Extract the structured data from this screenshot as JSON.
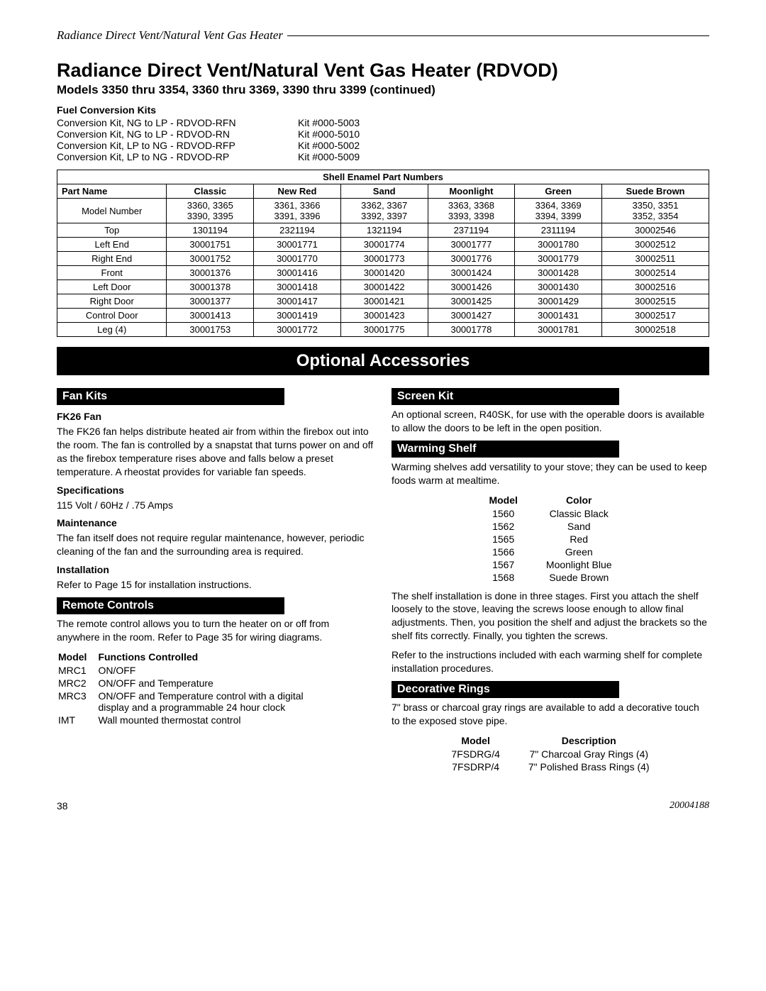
{
  "header": {
    "running_head": "Radiance Direct Vent/Natural Vent Gas Heater",
    "title": "Radiance Direct Vent/Natural Vent Gas Heater (RDVOD)",
    "subtitle": "Models 3350 thru 3354, 3360 thru 3369, 3390 thru 3399 (continued)"
  },
  "fuel_kits": {
    "heading": "Fuel Conversion Kits",
    "rows": [
      {
        "name": "Conversion Kit, NG to LP - RDVOD-RFN",
        "kit": "Kit #000-5003"
      },
      {
        "name": "Conversion Kit, NG to LP - RDVOD-RN",
        "kit": "Kit #000-5010"
      },
      {
        "name": "Conversion Kit, LP to NG - RDVOD-RFP",
        "kit": "Kit #000-5002"
      },
      {
        "name": "Conversion Kit, LP to NG - RDVOD-RP",
        "kit": "Kit #000-5009"
      }
    ]
  },
  "enamel": {
    "title": "Shell Enamel Part Numbers",
    "cols": [
      "Part Name",
      "Classic",
      "New Red",
      "Sand",
      "Moonlight",
      "Green",
      "Suede Brown"
    ],
    "model_row": {
      "label": "Model Number",
      "cells": [
        "3360, 3365\n3390, 3395",
        "3361, 3366\n3391, 3396",
        "3362, 3367\n3392, 3397",
        "3363, 3368\n3393, 3398",
        "3364, 3369\n3394, 3399",
        "3350, 3351\n3352, 3354"
      ]
    },
    "rows": [
      {
        "label": "Top",
        "cells": [
          "1301194",
          "2321194",
          "1321194",
          "2371194",
          "2311194",
          "30002546"
        ]
      },
      {
        "label": "Left End",
        "cells": [
          "30001751",
          "30001771",
          "30001774",
          "30001777",
          "30001780",
          "30002512"
        ]
      },
      {
        "label": "Right End",
        "cells": [
          "30001752",
          "30001770",
          "30001773",
          "30001776",
          "30001779",
          "30002511"
        ]
      },
      {
        "label": "Front",
        "cells": [
          "30001376",
          "30001416",
          "30001420",
          "30001424",
          "30001428",
          "30002514"
        ]
      },
      {
        "label": "Left Door",
        "cells": [
          "30001378",
          "30001418",
          "30001422",
          "30001426",
          "30001430",
          "30002516"
        ]
      },
      {
        "label": "Right Door",
        "cells": [
          "30001377",
          "30001417",
          "30001421",
          "30001425",
          "30001429",
          "30002515"
        ]
      },
      {
        "label": "Control Door",
        "cells": [
          "30001413",
          "30001419",
          "30001423",
          "30001427",
          "30001431",
          "30002517"
        ]
      },
      {
        "label": "Leg (4)",
        "cells": [
          "30001753",
          "30001772",
          "30001775",
          "30001778",
          "30001781",
          "30002518"
        ]
      }
    ]
  },
  "accessories_banner": "Optional Accessories",
  "fan": {
    "banner": "Fan Kits",
    "h1": "FK26 Fan",
    "p1": "The FK26 fan helps distribute heated air from within the firebox out into the room. The fan is controlled by a snapstat that turns power on and off as the firebox temperature rises above and falls below a preset temperature. A rheostat provides for variable fan speeds.",
    "h2": "Specifications",
    "p2": "115 Volt / 60Hz / .75 Amps",
    "h3": "Maintenance",
    "p3": "The fan itself does not require regular maintenance, however, periodic cleaning of the fan and the surrounding area is required.",
    "h4": "Installation",
    "p4": "Refer to Page 15 for installation instructions."
  },
  "remote": {
    "banner": "Remote Controls",
    "p1": "The remote control allows you to turn the heater on or off from anywhere in the room. Refer to Page 35 for wiring diagrams.",
    "cols": [
      "Model",
      "Functions Controlled"
    ],
    "rows": [
      {
        "m": "MRC1",
        "f": "ON/OFF"
      },
      {
        "m": "MRC2",
        "f": "ON/OFF and Temperature"
      },
      {
        "m": "MRC3",
        "f": "ON/OFF and Temperature control with a digital display and a programmable 24 hour clock"
      },
      {
        "m": "IMT",
        "f": "Wall mounted thermostat control"
      }
    ]
  },
  "screen": {
    "banner": "Screen Kit",
    "p1": "An optional screen, R40SK, for use with the operable doors is available to allow the doors to be left in the open position."
  },
  "warming": {
    "banner": "Warming Shelf",
    "p1": "Warming shelves add versatility to your stove; they can be used to keep foods warm at mealtime.",
    "cols": [
      "Model",
      "Color"
    ],
    "rows": [
      {
        "m": "1560",
        "c": "Classic Black"
      },
      {
        "m": "1562",
        "c": "Sand"
      },
      {
        "m": "1565",
        "c": "Red"
      },
      {
        "m": "1566",
        "c": "Green"
      },
      {
        "m": "1567",
        "c": "Moonlight Blue"
      },
      {
        "m": "1568",
        "c": "Suede Brown"
      }
    ],
    "p2": "The shelf installation is done in three stages. First you attach the shelf loosely to the stove, leaving the screws loose enough to allow final adjustments. Then, you position the shelf and adjust the brackets so the shelf fits correctly. Finally, you tighten the screws.",
    "p3": "Refer to the instructions included with each warming shelf for complete installation procedures."
  },
  "rings": {
    "banner": "Decorative Rings",
    "p1": "7\" brass or charcoal gray rings are available to add a decorative touch to the exposed stove pipe.",
    "cols": [
      "Model",
      "Description"
    ],
    "rows": [
      {
        "m": "7FSDRG/4",
        "d": "7\" Charcoal Gray Rings (4)"
      },
      {
        "m": "7FSDRP/4",
        "d": "7\" Polished Brass Rings (4)"
      }
    ]
  },
  "footer": {
    "page": "38",
    "doc": "20004188"
  }
}
